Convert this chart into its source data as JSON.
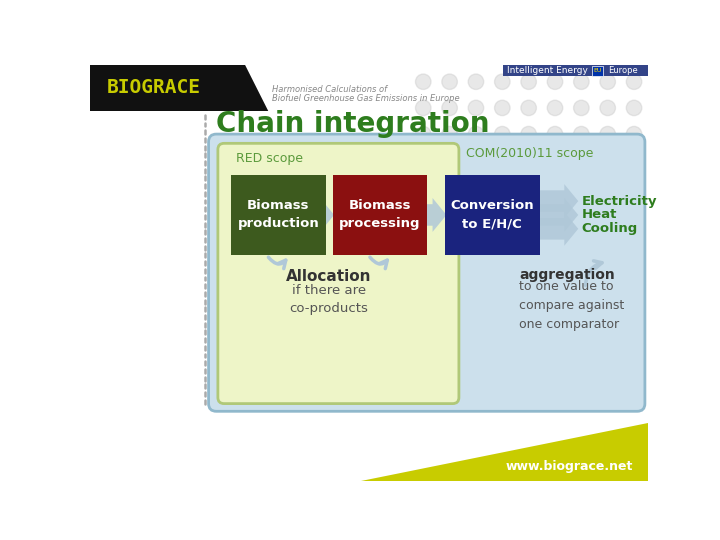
{
  "title": "Chain integration",
  "title_color": "#2E7D1E",
  "title_fontsize": 20,
  "bg_color": "#ffffff",
  "red_scope_label": "RED scope",
  "com_scope_label": "COM(2010)11 scope",
  "scope_label_color": "#5B9A3C",
  "red_box_facecolor": "#eef5c8",
  "com_box_facecolor": "#cce0ec",
  "red_box_edgecolor": "#b0c878",
  "com_box_edgecolor": "#90b8cc",
  "box1_text": "Biomass\nproduction",
  "box1_color": "#3d5a1e",
  "box2_text": "Biomass\nprocessing",
  "box2_color": "#8b1010",
  "box3_text": "Conversion\nto E/H/C",
  "box3_color": "#1a237e",
  "box_text_color": "#ffffff",
  "arrow_color": "#b0c8d8",
  "allocation_title": "Allocation",
  "allocation_sub": "if there are\nco-products",
  "aggregation_title": "aggregation",
  "aggregation_sub": "to one value to\ncompare against\none comparator",
  "text_color": "#555555",
  "outputs": [
    "Electricity",
    "Heat",
    "Cooling"
  ],
  "output_color": "#2E7D1E",
  "footer_text": "www.biograce.net",
  "footer_color": "#c8cc00",
  "footer_text_color": "#ffffff",
  "header_bg": "#111111",
  "biograce_text": "BIOGRACE",
  "biograce_color": "#c8cc00",
  "sub_header_line1": "Harmonised Calculations of",
  "sub_header_line2": "Biofuel Greenhouse Gas Emissions in Europe",
  "ie_text": "Intelligent Energy",
  "ie_bg": "#334488",
  "eu_text": "Europe",
  "dots_color": "#cccccc"
}
